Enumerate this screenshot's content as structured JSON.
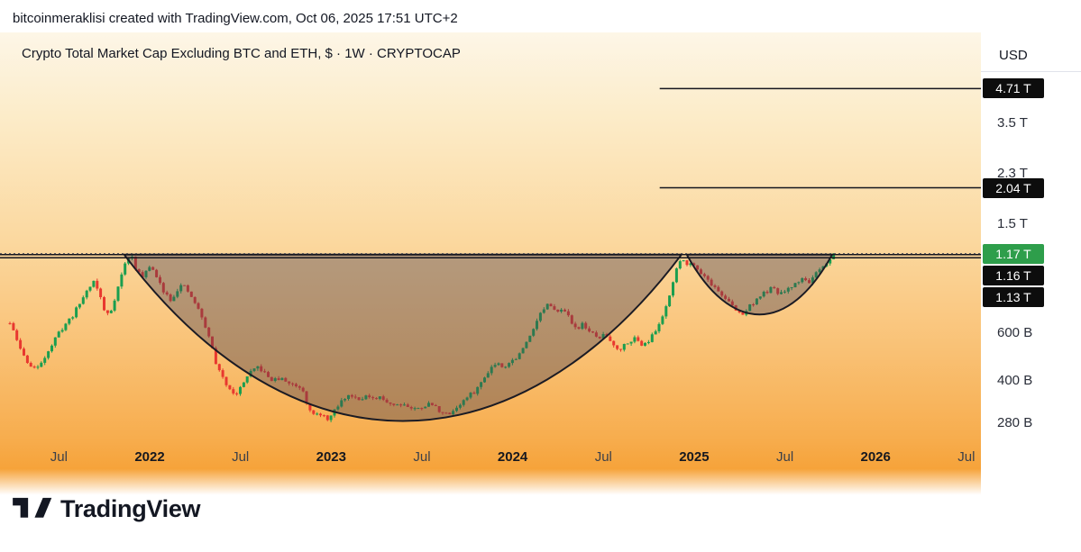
{
  "attribution": "bitcoinmeraklisi created with TradingView.com, Oct 06, 2025 17:51 UTC+2",
  "title": "Crypto Total Market Cap Excluding BTC and ETH, $ · 1W · CRYPTOCAP",
  "currency_label": "USD",
  "logo_text": "TradingView",
  "chart_data": {
    "type": "candlestick",
    "title": "Crypto Total Market Cap Excluding BTC and ETH, $ · 1W · CRYPTOCAP",
    "y_scale": "log",
    "unit": "USD (B = billions, T = trillions)",
    "y_axis_ticks": [
      {
        "label": "3.5 T",
        "value": 3500
      },
      {
        "label": "2.3 T",
        "value": 2300
      },
      {
        "label": "1.5 T",
        "value": 1500
      },
      {
        "label": "600 B",
        "value": 600
      },
      {
        "label": "400 B",
        "value": 400
      },
      {
        "label": "280 B",
        "value": 280
      }
    ],
    "x_axis_ticks": [
      {
        "label": "Jul",
        "t": 2021.5,
        "bold": false
      },
      {
        "label": "2022",
        "t": 2022.0,
        "bold": true
      },
      {
        "label": "Jul",
        "t": 2022.5,
        "bold": false
      },
      {
        "label": "2023",
        "t": 2023.0,
        "bold": true
      },
      {
        "label": "Jul",
        "t": 2023.5,
        "bold": false
      },
      {
        "label": "2024",
        "t": 2024.0,
        "bold": true
      },
      {
        "label": "Jul",
        "t": 2024.5,
        "bold": false
      },
      {
        "label": "2025",
        "t": 2025.0,
        "bold": true
      },
      {
        "label": "Jul",
        "t": 2025.5,
        "bold": false
      },
      {
        "label": "2026",
        "t": 2026.0,
        "bold": true
      },
      {
        "label": "Jul",
        "t": 2026.5,
        "bold": false
      }
    ],
    "price_lines": [
      {
        "label": "4.71 T",
        "value": 4710,
        "from_t": 2024.81
      },
      {
        "label": "2.04 T",
        "value": 2040,
        "from_t": 2024.81
      },
      {
        "label": "1.16 T",
        "value": 1160
      },
      {
        "label": "1.13 T",
        "value": 1130
      }
    ],
    "current_price": {
      "label": "1.17 T",
      "value": 1170
    },
    "pattern": {
      "name": "cup-and-handle",
      "rim_value": 1160,
      "cup": {
        "t_start": 2021.86,
        "t_end": 2024.93,
        "t_bottom": 2023.4,
        "bottom_value": 285
      },
      "handle": {
        "t_start": 2024.96,
        "t_end": 2025.76,
        "t_bottom": 2025.3,
        "bottom_value": 700
      }
    },
    "weekly_close_anchors_billions": [
      [
        2021.23,
        650
      ],
      [
        2021.26,
        580
      ],
      [
        2021.3,
        500
      ],
      [
        2021.34,
        455
      ],
      [
        2021.38,
        440
      ],
      [
        2021.42,
        490
      ],
      [
        2021.46,
        540
      ],
      [
        2021.5,
        600
      ],
      [
        2021.54,
        650
      ],
      [
        2021.58,
        700
      ],
      [
        2021.62,
        780
      ],
      [
        2021.66,
        870
      ],
      [
        2021.69,
        930
      ],
      [
        2021.72,
        850
      ],
      [
        2021.75,
        720
      ],
      [
        2021.78,
        700
      ],
      [
        2021.81,
        810
      ],
      [
        2021.84,
        950
      ],
      [
        2021.87,
        1100
      ],
      [
        2021.9,
        1150
      ],
      [
        2021.93,
        1000
      ],
      [
        2021.96,
        960
      ],
      [
        2021.99,
        1060
      ],
      [
        2022.02,
        1010
      ],
      [
        2022.05,
        920
      ],
      [
        2022.08,
        850
      ],
      [
        2022.12,
        790
      ],
      [
        2022.15,
        860
      ],
      [
        2022.18,
        900
      ],
      [
        2022.22,
        830
      ],
      [
        2022.26,
        750
      ],
      [
        2022.3,
        650
      ],
      [
        2022.34,
        540
      ],
      [
        2022.37,
        450
      ],
      [
        2022.41,
        400
      ],
      [
        2022.45,
        370
      ],
      [
        2022.48,
        355
      ],
      [
        2022.52,
        400
      ],
      [
        2022.56,
        430
      ],
      [
        2022.6,
        450
      ],
      [
        2022.64,
        420
      ],
      [
        2022.68,
        400
      ],
      [
        2022.72,
        408
      ],
      [
        2022.76,
        395
      ],
      [
        2022.8,
        385
      ],
      [
        2022.84,
        378
      ],
      [
        2022.87,
        325
      ],
      [
        2022.91,
        302
      ],
      [
        2022.95,
        296
      ],
      [
        2022.99,
        290
      ],
      [
        2023.03,
        318
      ],
      [
        2023.07,
        345
      ],
      [
        2023.11,
        356
      ],
      [
        2023.15,
        344
      ],
      [
        2023.19,
        352
      ],
      [
        2023.23,
        340
      ],
      [
        2023.27,
        346
      ],
      [
        2023.31,
        336
      ],
      [
        2023.35,
        326
      ],
      [
        2023.39,
        332
      ],
      [
        2023.43,
        320
      ],
      [
        2023.47,
        314
      ],
      [
        2023.51,
        324
      ],
      [
        2023.55,
        330
      ],
      [
        2023.59,
        314
      ],
      [
        2023.63,
        300
      ],
      [
        2023.67,
        310
      ],
      [
        2023.71,
        328
      ],
      [
        2023.75,
        348
      ],
      [
        2023.79,
        365
      ],
      [
        2023.83,
        395
      ],
      [
        2023.87,
        440
      ],
      [
        2023.91,
        468
      ],
      [
        2023.95,
        452
      ],
      [
        2023.99,
        470
      ],
      [
        2024.03,
        492
      ],
      [
        2024.07,
        540
      ],
      [
        2024.11,
        620
      ],
      [
        2024.15,
        700
      ],
      [
        2024.19,
        760
      ],
      [
        2024.23,
        720
      ],
      [
        2024.27,
        742
      ],
      [
        2024.31,
        680
      ],
      [
        2024.35,
        622
      ],
      [
        2024.39,
        645
      ],
      [
        2024.43,
        600
      ],
      [
        2024.47,
        572
      ],
      [
        2024.51,
        592
      ],
      [
        2024.55,
        548
      ],
      [
        2024.59,
        520
      ],
      [
        2024.63,
        556
      ],
      [
        2024.67,
        572
      ],
      [
        2024.71,
        546
      ],
      [
        2024.75,
        562
      ],
      [
        2024.79,
        610
      ],
      [
        2024.83,
        700
      ],
      [
        2024.87,
        850
      ],
      [
        2024.9,
        1000
      ],
      [
        2024.93,
        1150
      ],
      [
        2024.96,
        1060
      ],
      [
        2024.99,
        1095
      ],
      [
        2025.03,
        1005
      ],
      [
        2025.07,
        950
      ],
      [
        2025.11,
        880
      ],
      [
        2025.15,
        830
      ],
      [
        2025.19,
        780
      ],
      [
        2025.23,
        722
      ],
      [
        2025.27,
        700
      ],
      [
        2025.31,
        758
      ],
      [
        2025.35,
        800
      ],
      [
        2025.39,
        842
      ],
      [
        2025.43,
        872
      ],
      [
        2025.47,
        832
      ],
      [
        2025.51,
        852
      ],
      [
        2025.55,
        900
      ],
      [
        2025.59,
        948
      ],
      [
        2025.63,
        920
      ],
      [
        2025.67,
        980
      ],
      [
        2025.7,
        1020
      ],
      [
        2025.73,
        1070
      ],
      [
        2025.75,
        1110
      ],
      [
        2025.77,
        1170
      ]
    ],
    "style": {
      "up_color": "#1a9e4f",
      "down_color": "#e8382f",
      "pattern_fill": "rgba(74,66,82,0.40)",
      "pattern_stroke": "#1b1b24",
      "line_color": "#16161e",
      "current_line_color": "#4a4e59",
      "badge_black": "#0d0d0d",
      "badge_green": "#2e9e4b",
      "background_top": "#fdf6e7",
      "background_bottom": "#f6a33a"
    }
  }
}
